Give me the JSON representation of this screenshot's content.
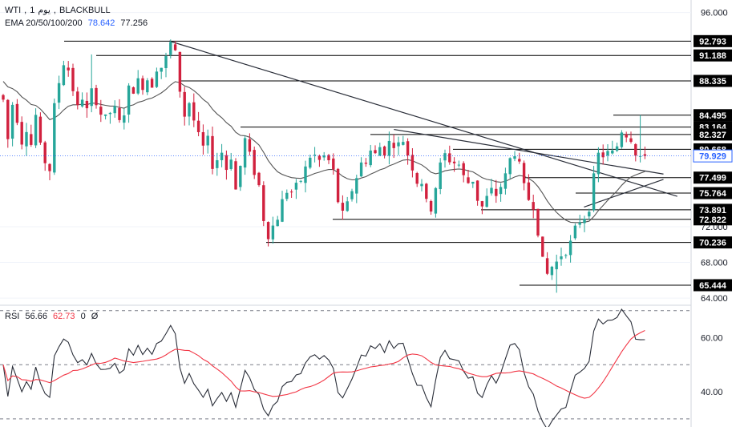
{
  "header": {
    "symbol": "WTI",
    "interval": "1",
    "interval_unit": "يوم",
    "broker": "BLACKBULL",
    "ema_label": "EMA 20/50/100/200",
    "ema_value_1": "78.642",
    "ema_value_2": "77.256"
  },
  "rsi_header": {
    "label": "RSI",
    "value_1": "56.66",
    "value_2": "62.73",
    "value_3": "0",
    "value_4": "Ø"
  },
  "colors": {
    "up": "#26a69a",
    "down": "#d1213e",
    "ema": "#555555",
    "rsi": "#2a2e39",
    "rsi_ma": "#f23645",
    "level_line": "#000000",
    "badge_bg": "#000000",
    "current_badge_bg": "#ffffff",
    "current_badge_text": "#2962ff"
  },
  "chart_data": [
    {
      "type": "candlestick",
      "title": "",
      "ylim": [
        63.2,
        97.4
      ],
      "y_ticks": [
        "96.000",
        "72.000",
        "68.000",
        "64.000"
      ],
      "levels": [
        {
          "value": "92.793",
          "y": 92.793
        },
        {
          "value": "91.188",
          "y": 91.188
        },
        {
          "value": "88.335",
          "y": 88.335
        },
        {
          "value": "84.495",
          "y": 84.495
        },
        {
          "value": "83.164",
          "y": 83.164
        },
        {
          "value": "82.327",
          "y": 82.327,
          "label_partial": "82.327"
        },
        {
          "value": "80.668",
          "y": 80.668,
          "label_partial": "80.668"
        },
        {
          "value": "77.499",
          "y": 77.499
        },
        {
          "value": "75.764",
          "y": 75.764
        },
        {
          "value": "73.891",
          "y": 73.891
        },
        {
          "value": "72.822",
          "y": 72.822
        },
        {
          "value": "70.236",
          "y": 70.236
        },
        {
          "value": "65.444",
          "y": 65.444
        }
      ],
      "current_price": "79.929",
      "trendlines": [
        {
          "from": [
            0.245,
            92.8
          ],
          "to": [
            0.98,
            75.4
          ]
        },
        {
          "from": [
            0.57,
            82.9
          ],
          "to": [
            0.96,
            77.9
          ]
        },
        {
          "from": [
            0.845,
            74.2
          ],
          "to": [
            0.96,
            77.3
          ]
        }
      ],
      "series": [
        {
          "kind": "ohlc",
          "values": []
        },
        {
          "kind": "ema",
          "values": []
        }
      ]
    },
    {
      "type": "line",
      "title": "",
      "ylim": [
        27,
        72
      ],
      "y_ticks": [
        "60.00",
        "40.00"
      ],
      "bands": [
        70,
        50,
        30
      ],
      "series": [
        {
          "kind": "rsi",
          "values": []
        },
        {
          "kind": "rsi_ma",
          "values": []
        }
      ]
    }
  ]
}
